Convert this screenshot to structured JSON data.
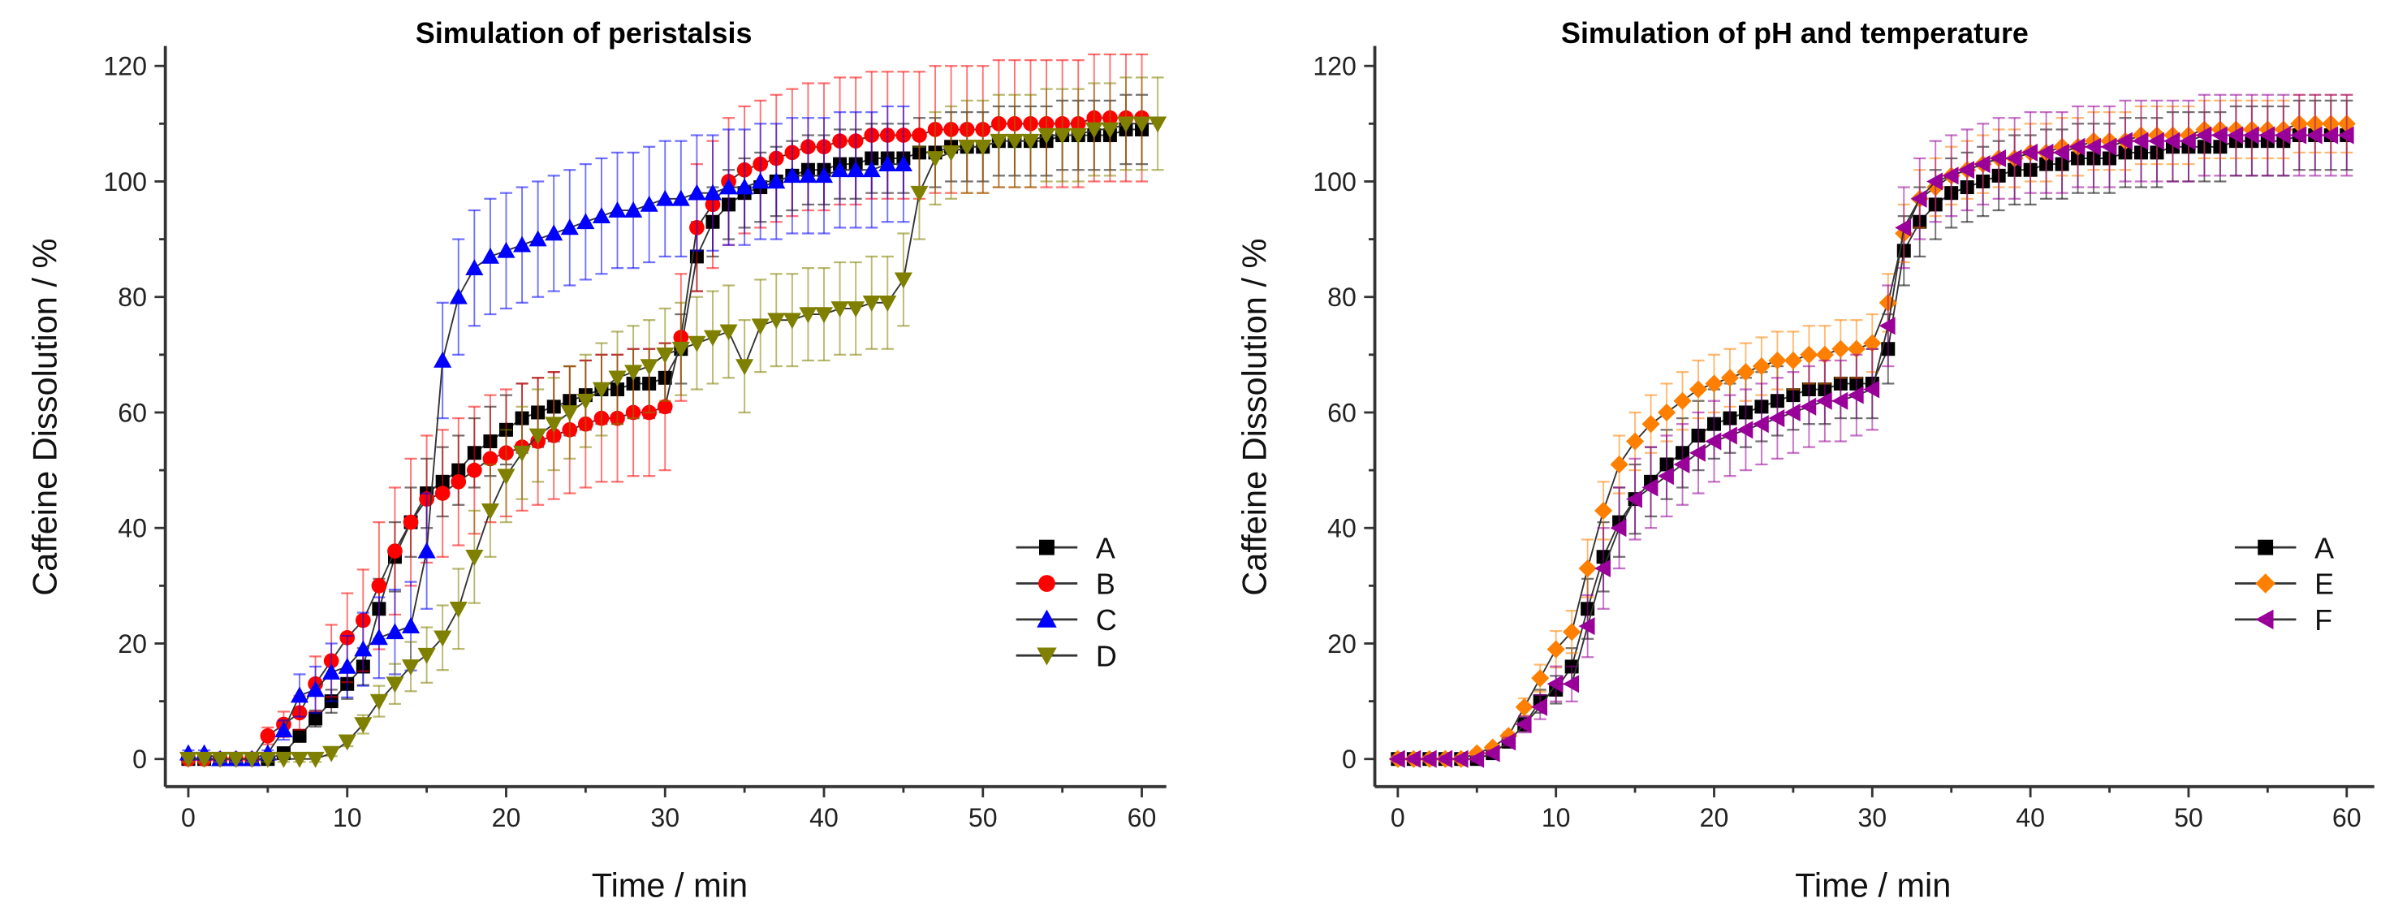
{
  "chart_data": [
    {
      "type": "line",
      "title": "Simulation of peristalsis",
      "xlabel": "Time / min",
      "ylabel": "Caffeine Dissolution / %",
      "xlim": [
        0,
        60
      ],
      "ylim": [
        0,
        120
      ],
      "xticks": [
        0,
        10,
        20,
        30,
        40,
        50,
        60
      ],
      "yticks": [
        0,
        20,
        40,
        60,
        80,
        100,
        120
      ],
      "legend_position": "center-right",
      "series": [
        {
          "name": "A",
          "color": "#000000",
          "marker": "square",
          "error": 6,
          "values": [
            0,
            0,
            0,
            0,
            0,
            0,
            1,
            4,
            7,
            10,
            13,
            16,
            26,
            35,
            41,
            46,
            48,
            50,
            53,
            55,
            57,
            59,
            60,
            61,
            62,
            63,
            64,
            64,
            65,
            65,
            66,
            71,
            87,
            93,
            96,
            98,
            99,
            100,
            101,
            102,
            102,
            103,
            103,
            104,
            104,
            104,
            105,
            105,
            106,
            106,
            106,
            107,
            107,
            107,
            107,
            108,
            108,
            108,
            108,
            109,
            109
          ]
        },
        {
          "name": "B",
          "color": "#ff0000",
          "marker": "circle",
          "error": 11,
          "values": [
            0,
            0,
            0,
            0,
            0,
            4,
            6,
            8,
            13,
            17,
            21,
            24,
            30,
            36,
            41,
            45,
            46,
            48,
            50,
            52,
            53,
            54,
            55,
            56,
            57,
            58,
            59,
            59,
            60,
            60,
            61,
            73,
            92,
            96,
            100,
            102,
            103,
            104,
            105,
            106,
            106,
            107,
            107,
            108,
            108,
            108,
            108,
            109,
            109,
            109,
            109,
            110,
            110,
            110,
            110,
            110,
            110,
            111,
            111,
            111,
            111
          ]
        },
        {
          "name": "C",
          "color": "#0000ff",
          "marker": "triangle-up",
          "error": 10,
          "values": [
            1,
            1,
            0,
            0,
            0,
            1,
            5,
            11,
            12,
            15,
            16,
            19,
            21,
            22,
            23,
            36,
            69,
            80,
            85,
            87,
            88,
            89,
            90,
            91,
            92,
            93,
            94,
            95,
            95,
            96,
            97,
            97,
            98,
            98,
            99,
            99,
            100,
            100,
            101,
            101,
            101,
            102,
            102,
            102,
            103,
            103
          ]
        },
        {
          "name": "D",
          "color": "#808000",
          "marker": "triangle-down",
          "error": 8,
          "values": [
            0,
            0,
            0,
            0,
            0,
            0,
            0,
            0,
            0,
            1,
            3,
            6,
            10,
            13,
            16,
            18,
            21,
            26,
            35,
            43,
            49,
            53,
            56,
            58,
            60,
            62,
            64,
            66,
            67,
            68,
            70,
            71,
            72,
            73,
            74,
            68,
            75,
            76,
            76,
            77,
            77,
            78,
            78,
            79,
            79,
            83,
            98,
            104,
            105,
            106,
            106,
            107,
            107,
            107,
            108,
            108,
            108,
            109,
            109,
            110,
            110,
            110
          ]
        }
      ]
    },
    {
      "type": "line",
      "title": "Simulation of pH and temperature",
      "xlabel": "Time / min",
      "ylabel": "Caffeine Dissolution / %",
      "xlim": [
        0,
        60
      ],
      "ylim": [
        0,
        120
      ],
      "xticks": [
        0,
        10,
        20,
        30,
        40,
        50,
        60
      ],
      "yticks": [
        0,
        20,
        40,
        60,
        80,
        100,
        120
      ],
      "legend_position": "center-right",
      "series": [
        {
          "name": "A",
          "color": "#000000",
          "marker": "square",
          "error": 6,
          "values": [
            0,
            0,
            0,
            0,
            0,
            0,
            1,
            3,
            6,
            10,
            12,
            16,
            26,
            35,
            41,
            45,
            48,
            51,
            53,
            56,
            58,
            59,
            60,
            61,
            62,
            63,
            64,
            64,
            65,
            65,
            65,
            71,
            88,
            93,
            96,
            98,
            99,
            100,
            101,
            102,
            102,
            103,
            103,
            104,
            104,
            104,
            105,
            105,
            105,
            106,
            106,
            106,
            106,
            107,
            107,
            107,
            107,
            108,
            108,
            108,
            108
          ]
        },
        {
          "name": "E",
          "color": "#ff8000",
          "marker": "diamond",
          "error": 5,
          "values": [
            0,
            0,
            0,
            0,
            0,
            1,
            2,
            4,
            9,
            14,
            19,
            22,
            33,
            43,
            51,
            55,
            58,
            60,
            62,
            64,
            65,
            66,
            67,
            68,
            69,
            69,
            70,
            70,
            71,
            71,
            72,
            79,
            91,
            97,
            99,
            101,
            102,
            103,
            104,
            104,
            105,
            105,
            106,
            106,
            107,
            107,
            107,
            108,
            108,
            108,
            108,
            109,
            109,
            109,
            109,
            109,
            109,
            110,
            110,
            110,
            110
          ]
        },
        {
          "name": "F",
          "color": "#990099",
          "marker": "triangle-left",
          "error": 7,
          "values": [
            0,
            0,
            0,
            0,
            0,
            0,
            1,
            3,
            6,
            9,
            13,
            13,
            23,
            33,
            40,
            45,
            47,
            49,
            51,
            53,
            55,
            56,
            57,
            58,
            59,
            60,
            61,
            62,
            62,
            63,
            64,
            75,
            92,
            97,
            100,
            101,
            102,
            103,
            104,
            104,
            105,
            105,
            105,
            106,
            106,
            106,
            107,
            107,
            107,
            107,
            107,
            108,
            108,
            108,
            108,
            108,
            108,
            108,
            108,
            108,
            108
          ]
        }
      ]
    }
  ]
}
